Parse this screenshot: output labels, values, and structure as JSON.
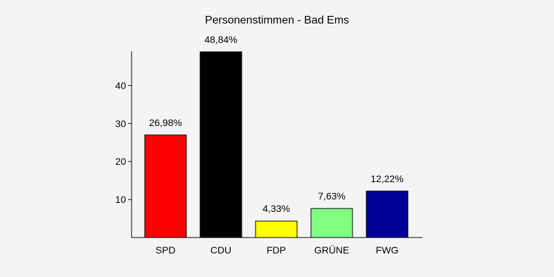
{
  "chart_data": {
    "type": "bar",
    "title": "Personenstimmen - Bad Ems",
    "categories": [
      "SPD",
      "CDU",
      "FDP",
      "GRÜNE",
      "FWG"
    ],
    "values": [
      26.98,
      48.84,
      4.33,
      7.63,
      12.22
    ],
    "value_labels": [
      "26,98%",
      "48,84%",
      "4,33%",
      "7,63%",
      "12,22%"
    ],
    "colors": [
      "#ff0000",
      "#000000",
      "#ffff00",
      "#80ff80",
      "#000099"
    ],
    "yticks": [
      10,
      20,
      30,
      40
    ],
    "ytick_labels": [
      "10",
      "20",
      "30",
      "40"
    ],
    "ylim": [
      0,
      49
    ],
    "xlabel": "",
    "ylabel": "",
    "grid": false,
    "legend": "none"
  }
}
